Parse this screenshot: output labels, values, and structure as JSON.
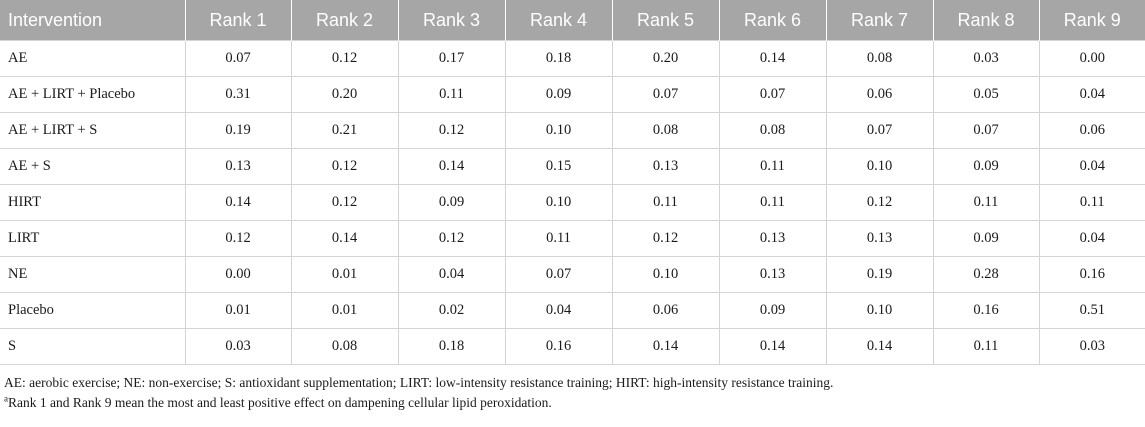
{
  "table": {
    "headers": [
      "Intervention",
      "Rank 1",
      "Rank 2",
      "Rank 3",
      "Rank 4",
      "Rank 5",
      "Rank 6",
      "Rank 7",
      "Rank 8",
      "Rank 9"
    ],
    "rows": [
      [
        "AE",
        "0.07",
        "0.12",
        "0.17",
        "0.18",
        "0.20",
        "0.14",
        "0.08",
        "0.03",
        "0.00"
      ],
      [
        "AE + LIRT + Placebo",
        "0.31",
        "0.20",
        "0.11",
        "0.09",
        "0.07",
        "0.07",
        "0.06",
        "0.05",
        "0.04"
      ],
      [
        "AE + LIRT + S",
        "0.19",
        "0.21",
        "0.12",
        "0.10",
        "0.08",
        "0.08",
        "0.07",
        "0.07",
        "0.06"
      ],
      [
        "AE + S",
        "0.13",
        "0.12",
        "0.14",
        "0.15",
        "0.13",
        "0.11",
        "0.10",
        "0.09",
        "0.04"
      ],
      [
        "HIRT",
        "0.14",
        "0.12",
        "0.09",
        "0.10",
        "0.11",
        "0.11",
        "0.12",
        "0.11",
        "0.11"
      ],
      [
        "LIRT",
        "0.12",
        "0.14",
        "0.12",
        "0.11",
        "0.12",
        "0.13",
        "0.13",
        "0.09",
        "0.04"
      ],
      [
        "NE",
        "0.00",
        "0.01",
        "0.04",
        "0.07",
        "0.10",
        "0.13",
        "0.19",
        "0.28",
        "0.16"
      ],
      [
        "Placebo",
        "0.01",
        "0.01",
        "0.02",
        "0.04",
        "0.06",
        "0.09",
        "0.10",
        "0.16",
        "0.51"
      ],
      [
        "S",
        "0.03",
        "0.08",
        "0.18",
        "0.16",
        "0.14",
        "0.14",
        "0.14",
        "0.11",
        "0.03"
      ]
    ]
  },
  "footnotes": {
    "abbreviations": "AE: aerobic exercise; NE: non-exercise; S: antioxidant supplementation; LIRT: low-intensity resistance training; HIRT: high-intensity resistance training.",
    "note_marker": "a",
    "note": "Rank 1 and Rank 9 mean the most and least positive effect on dampening cellular lipid peroxidation."
  },
  "colors": {
    "header_bg": "#a6a6a6",
    "header_text": "#ffffff",
    "grid_line": "#d4d4d4"
  }
}
